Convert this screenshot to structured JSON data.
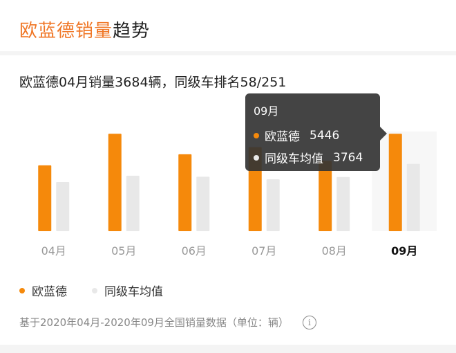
{
  "header": {
    "title_highlight": "欧蓝德销量",
    "title_rest": "趋势"
  },
  "summary": "欧蓝德04月销量3684辆，同级车排名58/251",
  "tooltip": {
    "month": "09月",
    "rows": [
      {
        "label": "欧蓝德",
        "value": "5446"
      },
      {
        "label": "同级车均值",
        "value": "3764"
      }
    ]
  },
  "legend": [
    {
      "label": "欧蓝德"
    },
    {
      "label": "同级车均值"
    }
  ],
  "footnote": "基于2020年04月-2020年09月全国销量数据（单位：辆）",
  "colors": {
    "primary": "#f5890b",
    "secondary": "#e8e8e8",
    "accent": "#f07828",
    "selected_bg": "#f7f7f7"
  },
  "chart_data": {
    "type": "bar",
    "categories": [
      "04月",
      "05月",
      "06月",
      "07月",
      "08月",
      "09月"
    ],
    "series": [
      {
        "name": "欧蓝德",
        "values": [
          3684,
          5446,
          4300,
          4700,
          3930,
          5446
        ]
      },
      {
        "name": "同级车均值",
        "values": [
          2750,
          3100,
          3050,
          2900,
          3030,
          3764
        ]
      }
    ],
    "selected_index": 5,
    "ylim": [
      0,
      6000
    ]
  }
}
